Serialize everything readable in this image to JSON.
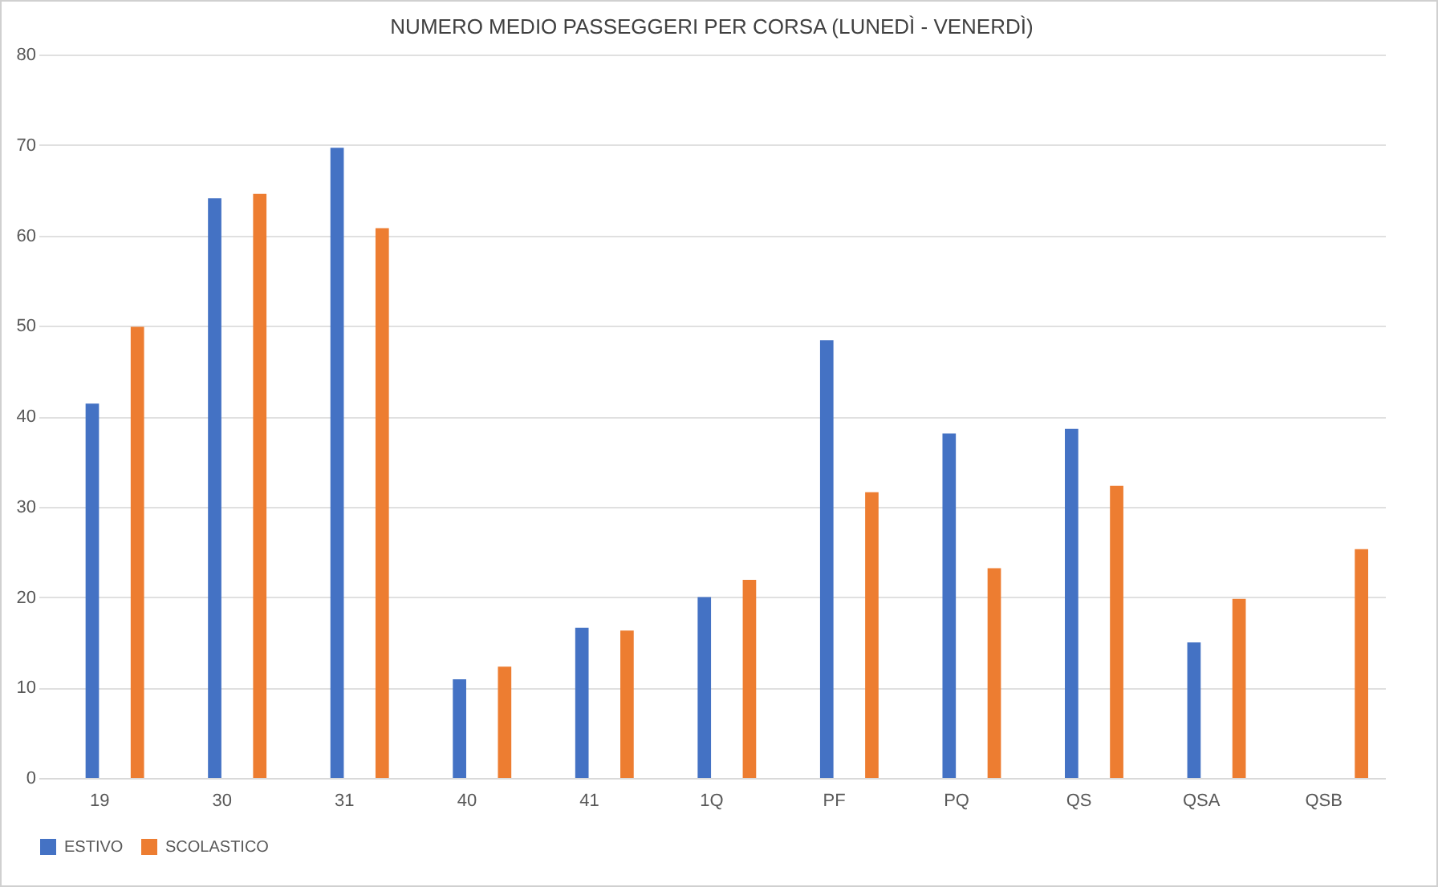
{
  "chart_data": {
    "type": "bar",
    "title": "NUMERO MEDIO PASSEGGERI PER CORSA (LUNEDÌ - VENERDÌ)",
    "categories": [
      "19",
      "30",
      "31",
      "40",
      "41",
      "1Q",
      "PF",
      "PQ",
      "QS",
      "QSA",
      "QSB"
    ],
    "series": [
      {
        "name": "ESTIVO",
        "color": "#4472c4",
        "values": [
          41.4,
          64.1,
          69.7,
          10.9,
          16.6,
          20.0,
          48.4,
          38.1,
          38.6,
          15.0,
          null
        ]
      },
      {
        "name": "SCOLASTICO",
        "color": "#ed7d31",
        "values": [
          49.9,
          64.6,
          60.8,
          12.3,
          16.3,
          21.9,
          31.6,
          23.2,
          32.3,
          19.8,
          25.3
        ]
      }
    ],
    "ylim": [
      0,
      80
    ],
    "yticks": [
      0,
      10,
      20,
      30,
      40,
      50,
      60,
      70,
      80
    ],
    "grid": "y",
    "legend": "bottom"
  }
}
